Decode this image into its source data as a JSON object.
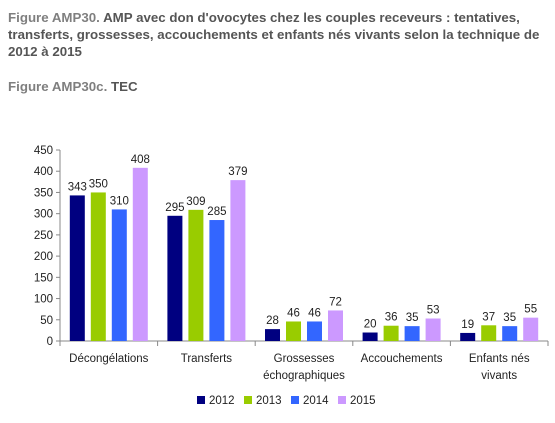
{
  "header": {
    "figure_label": "Figure AMP30.",
    "title_text": "AMP avec don d'ovocytes chez les couples receveurs : tentatives, transferts, grossesses, accouchements et enfants nés vivants selon la technique de 2012 à 2015",
    "sub_label": "Figure AMP30c.",
    "sub_text": "TEC"
  },
  "chart_data": {
    "type": "bar",
    "title": "",
    "xlabel": "",
    "ylabel": "",
    "ylim": [
      0,
      450
    ],
    "yticks": [
      0,
      50,
      100,
      150,
      200,
      250,
      300,
      350,
      400,
      450
    ],
    "grid": false,
    "legend_position": "bottom",
    "categories": [
      [
        "Décongélations"
      ],
      [
        "Transferts"
      ],
      [
        "Grossesses",
        "échographiques"
      ],
      [
        "Accouchements"
      ],
      [
        "Enfants nés",
        "vivants"
      ]
    ],
    "series": [
      {
        "name": "2012",
        "color": "#000080",
        "values": [
          343,
          295,
          28,
          20,
          19
        ]
      },
      {
        "name": "2013",
        "color": "#99cc00",
        "values": [
          350,
          309,
          46,
          36,
          37
        ]
      },
      {
        "name": "2014",
        "color": "#3366ff",
        "values": [
          310,
          285,
          46,
          35,
          35
        ]
      },
      {
        "name": "2015",
        "color": "#cc99ff",
        "values": [
          408,
          379,
          72,
          53,
          55
        ]
      }
    ]
  }
}
